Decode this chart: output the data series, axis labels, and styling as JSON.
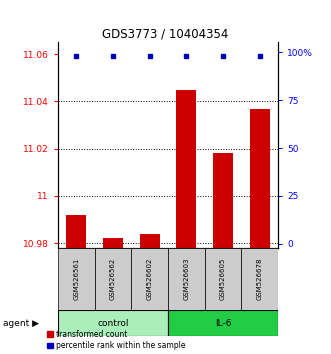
{
  "title": "GDS3773 / 10404354",
  "samples": [
    "GSM526561",
    "GSM526562",
    "GSM526602",
    "GSM526603",
    "GSM526605",
    "GSM526678"
  ],
  "groups": [
    "control",
    "control",
    "control",
    "IL-6",
    "IL-6",
    "IL-6"
  ],
  "red_values": [
    10.992,
    10.982,
    10.984,
    11.045,
    11.018,
    11.037
  ],
  "blue_percentile": 98,
  "ylim_left": [
    10.978,
    11.065
  ],
  "ylim_right": [
    -2,
    105
  ],
  "yticks_left": [
    10.98,
    11.0,
    11.02,
    11.04,
    11.06
  ],
  "yticks_left_labels": [
    "10.98",
    "11",
    "11.02",
    "11.04",
    "11.06"
  ],
  "yticks_right": [
    0,
    25,
    50,
    75,
    100
  ],
  "yticks_right_labels": [
    "0",
    "25",
    "50",
    "75",
    "100%"
  ],
  "bar_color": "#CC0000",
  "dot_color": "#0000BB",
  "bar_bottom": 10.978,
  "legend_red_label": "transformed count",
  "legend_blue_label": "percentile rank within the sample",
  "control_color": "#AAEEBB",
  "il6_color": "#22CC44",
  "gray_box_color": "#CCCCCC"
}
